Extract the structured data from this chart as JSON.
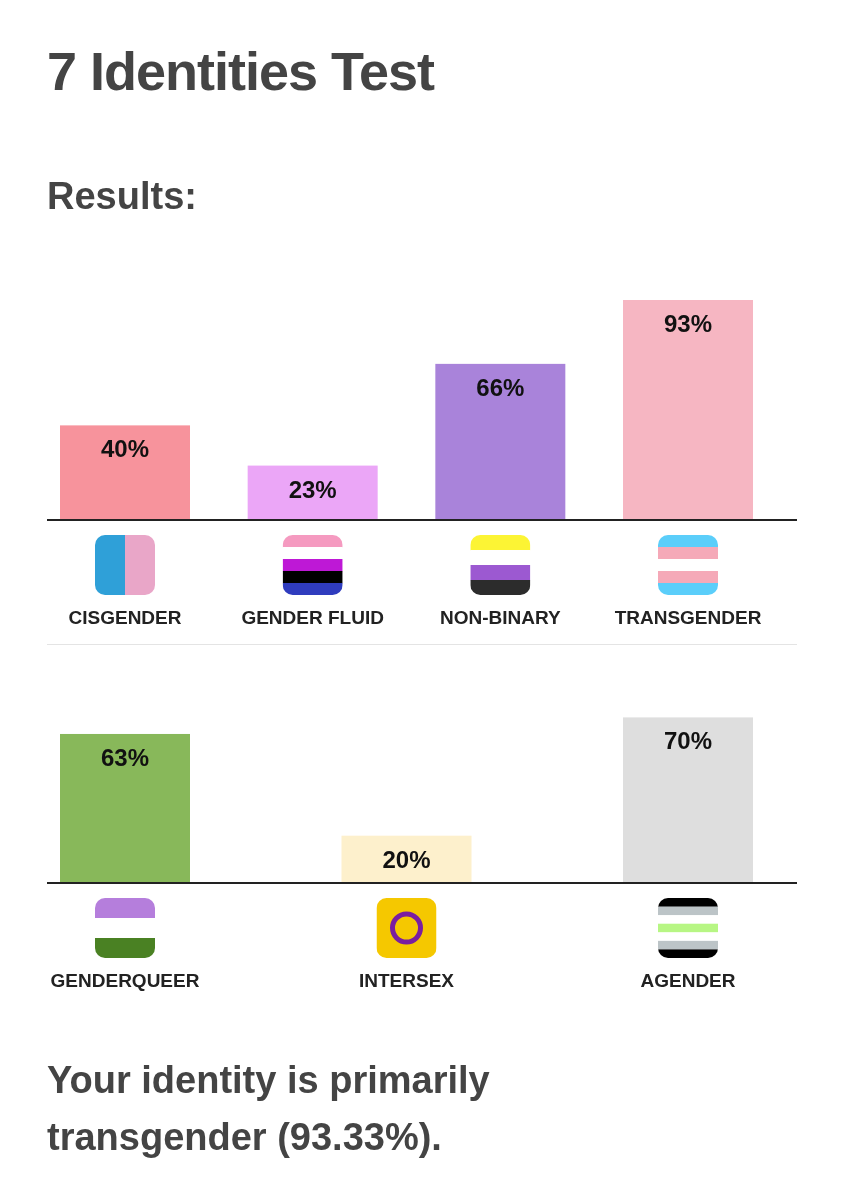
{
  "chart_data": [
    {
      "type": "bar",
      "title": "7 Identities Test",
      "subtitle": "Results:",
      "categories": [
        "CISGENDER",
        "GENDER FLUID",
        "NON-BINARY",
        "TRANSGENDER"
      ],
      "values": [
        40,
        23,
        66,
        93
      ],
      "value_labels": [
        "40%",
        "23%",
        "66%",
        "93%"
      ],
      "colors": [
        "#f7939c",
        "#eba6f7",
        "#a983da",
        "#f6b6c2"
      ]
    },
    {
      "type": "bar",
      "categories": [
        "GENDERQUEER",
        "INTERSEX",
        "AGENDER"
      ],
      "values": [
        63,
        20,
        70
      ],
      "value_labels": [
        "63%",
        "20%",
        "70%"
      ],
      "colors": [
        "#88b85a",
        "#fdf0cc",
        "#dedede"
      ],
      "annotations": [
        "Your identity is primarily transgender (93.33%)."
      ]
    }
  ]
}
